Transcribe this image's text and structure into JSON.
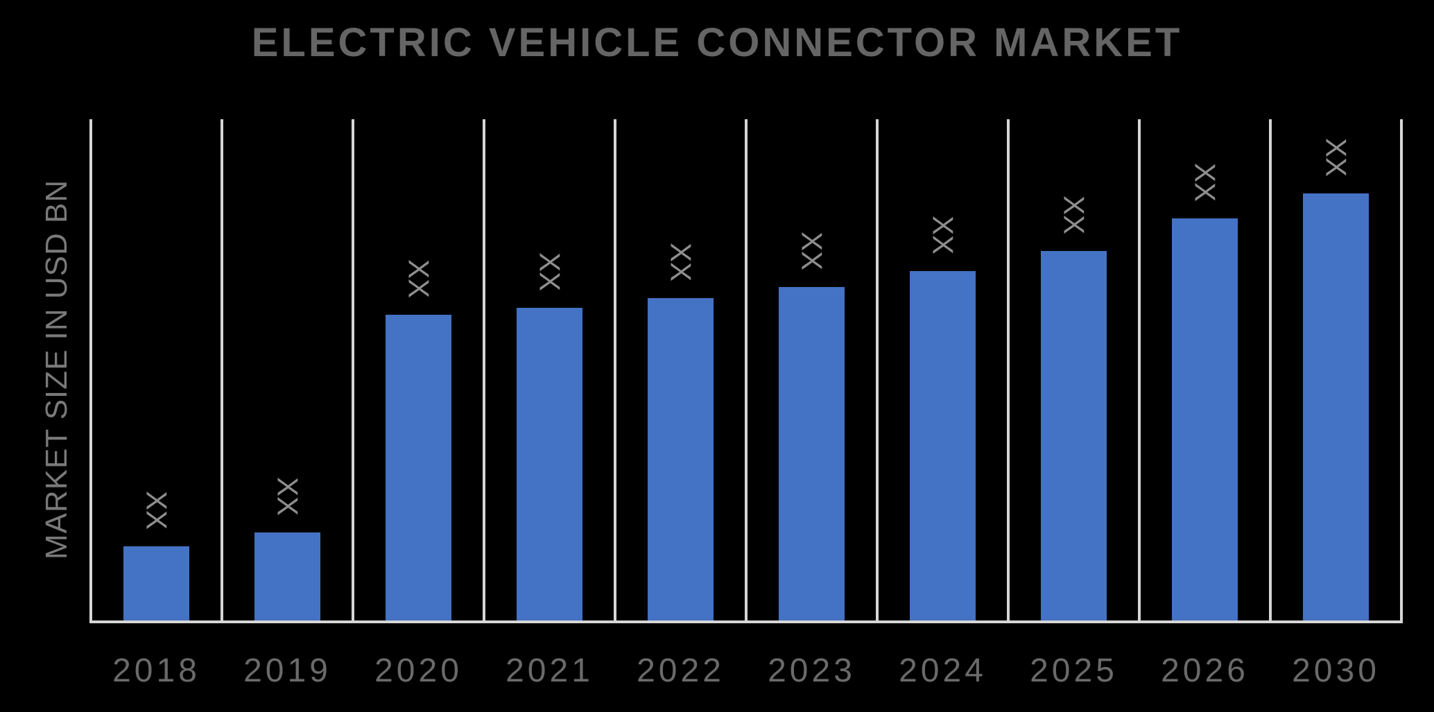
{
  "title": {
    "text": "ELECTRIC VEHICLE CONNECTOR MARKET"
  },
  "y_axis": {
    "label": "MARKET SIZE IN USD BN"
  },
  "chart_data": {
    "type": "bar",
    "title": "ELECTRIC VEHICLE CONNECTOR MARKET",
    "xlabel": "",
    "ylabel": "MARKET SIZE IN USD BN",
    "categories": [
      "2018",
      "2019",
      "2020",
      "2021",
      "2022",
      "2023",
      "2024",
      "2025",
      "2026",
      "2030"
    ],
    "series": [
      {
        "name": "Market size",
        "value_labels": [
          "XX",
          "XX",
          "XX",
          "XX",
          "XX",
          "XX",
          "XX",
          "XX",
          "XX",
          "XX"
        ],
        "values_pct_of_plot_height": [
          14.8,
          17.6,
          61.0,
          62.4,
          64.3,
          66.5,
          69.7,
          73.7,
          80.2,
          85.2
        ]
      }
    ],
    "value_axis_tick_labels": "none",
    "legend_position": "none",
    "gridlines": "vertical category separators",
    "colors": {
      "background": "#000000",
      "bar": "#4472C4",
      "gridline": "#D6D6D6",
      "axis_line": "#D6D6D6",
      "title_text": "#656565",
      "category_text": "#6A6A6A",
      "data_label_text": "#8E8E8E",
      "axis_title_text": "#7A7A7A"
    }
  }
}
